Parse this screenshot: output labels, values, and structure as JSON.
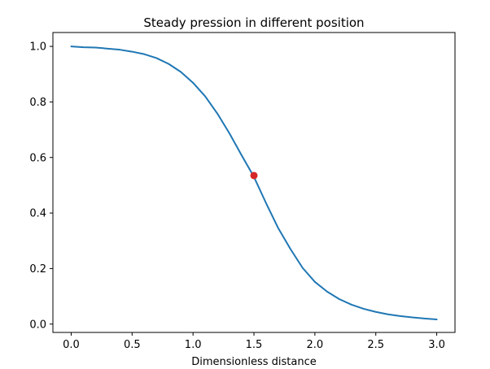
{
  "chart_data": {
    "type": "line",
    "title": "Steady pression in different position",
    "xlabel": "Dimensionless distance",
    "ylabel": "",
    "xlim": [
      -0.15,
      3.15
    ],
    "ylim": [
      -0.03,
      1.05
    ],
    "xticks": [
      0.0,
      0.5,
      1.0,
      1.5,
      2.0,
      2.5,
      3.0
    ],
    "xtick_labels": [
      "0.0",
      "0.5",
      "1.0",
      "1.5",
      "2.0",
      "2.5",
      "3.0"
    ],
    "yticks": [
      0.0,
      0.2,
      0.4,
      0.6,
      0.8,
      1.0
    ],
    "ytick_labels": [
      "0.0",
      "0.2",
      "0.4",
      "0.6",
      "0.8",
      "1.0"
    ],
    "grid": false,
    "series": [
      {
        "kind": "line",
        "color": "#1f77b4",
        "x": [
          0.0,
          0.1,
          0.2,
          0.3,
          0.4,
          0.5,
          0.6,
          0.7,
          0.8,
          0.9,
          1.0,
          1.1,
          1.2,
          1.3,
          1.4,
          1.5,
          1.6,
          1.7,
          1.8,
          1.9,
          2.0,
          2.1,
          2.2,
          2.3,
          2.4,
          2.5,
          2.6,
          2.7,
          2.8,
          2.9,
          3.0
        ],
        "y": [
          1.0,
          0.997,
          0.996,
          0.992,
          0.988,
          0.981,
          0.972,
          0.958,
          0.937,
          0.908,
          0.869,
          0.82,
          0.758,
          0.686,
          0.607,
          0.53,
          0.435,
          0.345,
          0.27,
          0.202,
          0.152,
          0.117,
          0.09,
          0.07,
          0.055,
          0.044,
          0.035,
          0.029,
          0.024,
          0.02,
          0.017
        ]
      },
      {
        "kind": "scatter",
        "color": "#d62728",
        "x": [
          1.5
        ],
        "y": [
          0.535
        ]
      }
    ]
  }
}
